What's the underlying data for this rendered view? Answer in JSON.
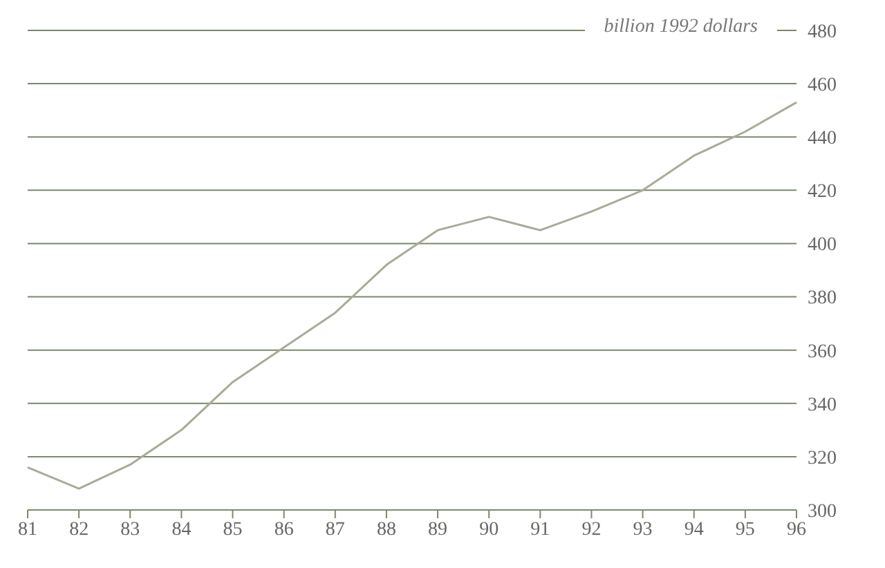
{
  "chart_data": {
    "type": "line",
    "ylabel": "billion 1992 dollars",
    "categories": [
      "81",
      "82",
      "83",
      "84",
      "85",
      "86",
      "87",
      "88",
      "89",
      "90",
      "91",
      "92",
      "93",
      "94",
      "95",
      "96"
    ],
    "series": [
      {
        "color": "#a8ab98",
        "values": [
          316,
          308,
          317,
          330,
          348,
          361,
          374,
          392,
          405,
          410,
          405,
          412,
          420,
          433,
          442,
          453
        ]
      }
    ],
    "ylim": [
      300,
      480
    ],
    "yticks": [
      300,
      320,
      340,
      360,
      380,
      400,
      420,
      440,
      460,
      480
    ],
    "grid": "y",
    "marker": "none"
  }
}
